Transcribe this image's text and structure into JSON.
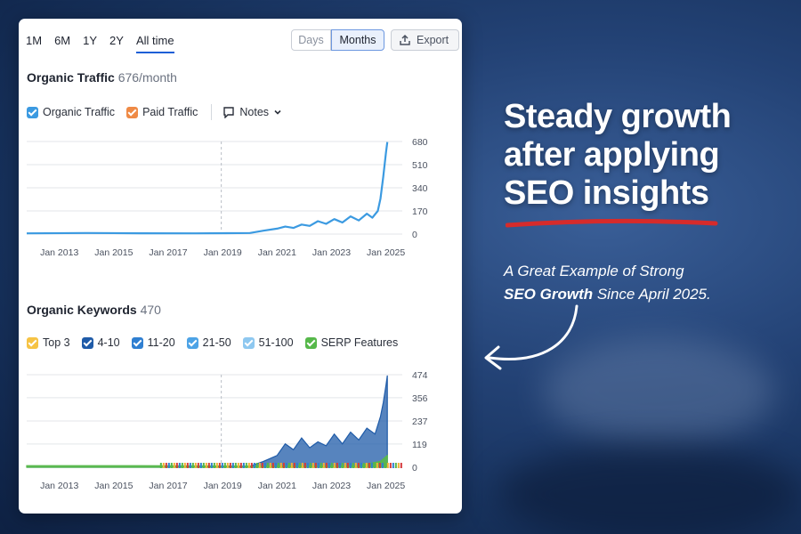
{
  "toolbar": {
    "ranges": [
      "1M",
      "6M",
      "1Y",
      "2Y",
      "All time"
    ],
    "active_range": "All time",
    "granularity": [
      "Days",
      "Months"
    ],
    "selected_granularity": "Months",
    "export_label": "Export"
  },
  "traffic": {
    "title": "Organic Traffic",
    "value": "676/month",
    "legend": [
      {
        "label": "Organic Traffic",
        "color": "#3b9ae1"
      },
      {
        "label": "Paid Traffic",
        "color": "#ef8a45"
      }
    ],
    "notes_label": "Notes"
  },
  "keywords": {
    "title": "Organic Keywords",
    "value": "470",
    "legend": [
      {
        "label": "Top 3",
        "color": "#f6c344"
      },
      {
        "label": "4-10",
        "color": "#1f5ba8"
      },
      {
        "label": "11-20",
        "color": "#2f7fd1"
      },
      {
        "label": "21-50",
        "color": "#4da3e6"
      },
      {
        "label": "51-100",
        "color": "#8ec8f0"
      },
      {
        "label": "SERP Features",
        "color": "#56b84a"
      }
    ]
  },
  "chart_data": [
    {
      "type": "line",
      "title": "Organic Traffic",
      "x_ticks": [
        "Jan 2013",
        "Jan 2015",
        "Jan 2017",
        "Jan 2019",
        "Jan 2021",
        "Jan 2023",
        "Jan 2025"
      ],
      "y_ticks": [
        0,
        170,
        340,
        510,
        680
      ],
      "ylim": [
        0,
        680
      ],
      "xlim": [
        2011.8,
        2025.6
      ],
      "grid": true,
      "series": [
        {
          "name": "Organic Traffic",
          "color": "#3b9ae1",
          "x": [
            2011.8,
            2014.0,
            2016.0,
            2018.0,
            2020.0,
            2020.5,
            2021.0,
            2021.3,
            2021.6,
            2021.9,
            2022.2,
            2022.5,
            2022.8,
            2023.1,
            2023.4,
            2023.7,
            2024.0,
            2024.3,
            2024.5,
            2024.7,
            2024.8,
            2024.9,
            2025.0,
            2025.05
          ],
          "y": [
            5,
            8,
            6,
            5,
            8,
            25,
            40,
            55,
            45,
            70,
            60,
            95,
            75,
            110,
            85,
            130,
            100,
            150,
            120,
            170,
            260,
            420,
            600,
            676
          ]
        }
      ]
    },
    {
      "type": "area",
      "title": "Organic Keywords",
      "x_ticks": [
        "Jan 2013",
        "Jan 2015",
        "Jan 2017",
        "Jan 2019",
        "Jan 2021",
        "Jan 2023",
        "Jan 2025"
      ],
      "y_ticks": [
        0,
        119,
        237,
        356,
        474
      ],
      "ylim": [
        0,
        474
      ],
      "xlim": [
        2011.8,
        2025.6
      ],
      "grid": true,
      "series": [
        {
          "name": "4-10",
          "color": "#1f5ba8",
          "x": [
            2011.8,
            2018.0,
            2020.0,
            2020.5,
            2021.0,
            2021.3,
            2021.6,
            2021.9,
            2022.2,
            2022.5,
            2022.8,
            2023.1,
            2023.4,
            2023.7,
            2024.0,
            2024.3,
            2024.6,
            2024.8,
            2024.9,
            2025.0,
            2025.05
          ],
          "y": [
            0,
            0,
            5,
            30,
            60,
            120,
            90,
            150,
            100,
            130,
            110,
            170,
            120,
            180,
            140,
            200,
            170,
            260,
            330,
            420,
            470
          ]
        },
        {
          "name": "SERP Features",
          "color": "#56b84a",
          "x": [
            2011.8,
            2016.0,
            2020.0,
            2024.0,
            2024.8,
            2025.05
          ],
          "y": [
            8,
            8,
            6,
            8,
            30,
            60
          ]
        }
      ]
    }
  ],
  "headline": [
    "Steady growth",
    "after applying",
    "SEO insights"
  ],
  "tagline": {
    "line1": "A Great Example of Strong",
    "bold": "SEO Growth",
    "line2_rest": " Since April 2025."
  }
}
